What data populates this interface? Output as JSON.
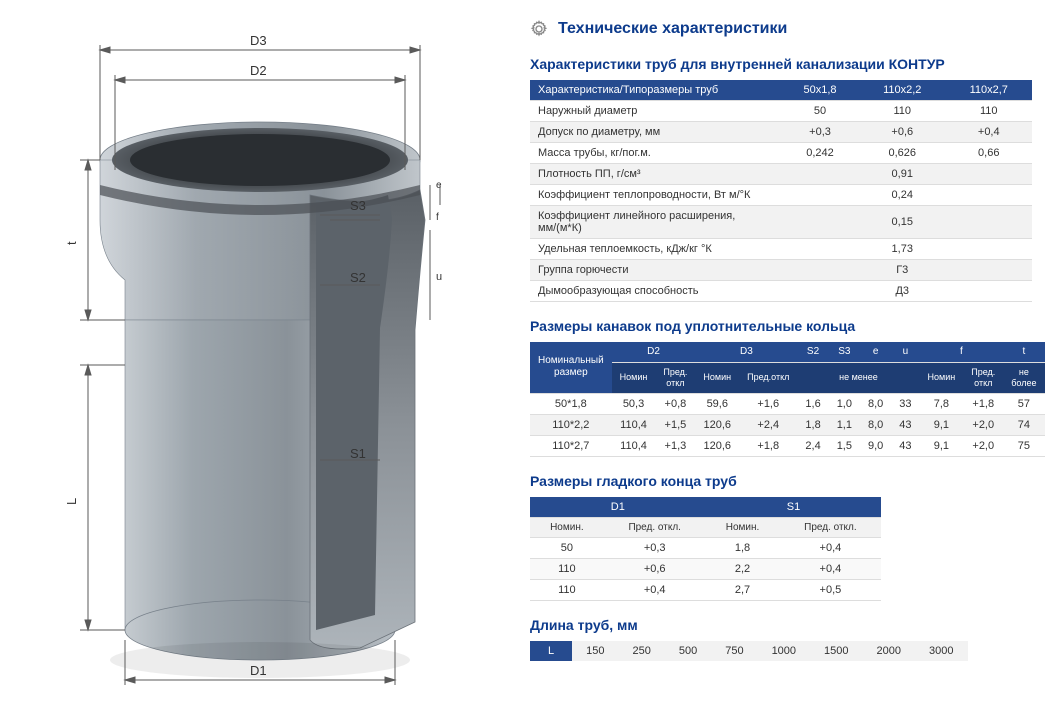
{
  "diagram": {
    "labels": {
      "D1": "D1",
      "D2": "D2",
      "D3": "D3",
      "S1": "S1",
      "S2": "S2",
      "S3": "S3",
      "e": "e",
      "f": "f",
      "u": "u",
      "L": "L",
      "t": "t"
    },
    "pipe_color": "#9da6ad",
    "pipe_dark": "#6b7279",
    "pipe_light": "#c5cbd0",
    "line_color": "#5a5a5a"
  },
  "mainHeading": "Технические характеристики",
  "table1": {
    "title": "Характеристики труб для внутренней канализации КОНТУР",
    "header": [
      "Характеристика/Типоразмеры труб",
      "50x1,8",
      "110x2,2",
      "110x2,7"
    ],
    "rows": [
      {
        "odd": false,
        "cells": [
          "Наружный диаметр",
          "50",
          "110",
          "110"
        ]
      },
      {
        "odd": true,
        "cells": [
          "Допуск по диаметру, мм",
          "+0,3",
          "+0,6",
          "+0,4"
        ]
      },
      {
        "odd": false,
        "cells": [
          "Масса трубы, кг/пог.м.",
          "0,242",
          "0,626",
          "0,66"
        ]
      },
      {
        "odd": true,
        "cells": [
          "Плотность ПП, г/см³",
          "",
          "0,91",
          ""
        ]
      },
      {
        "odd": false,
        "cells": [
          "Коэффициент теплопроводности, Вт м/°К",
          "",
          "0,24",
          ""
        ]
      },
      {
        "odd": true,
        "cells": [
          "Коэффициент линейного расширения, мм/(м*К)",
          "",
          "0,15",
          ""
        ]
      },
      {
        "odd": false,
        "cells": [
          "Удельная теплоемкость, кДж/кг °К",
          "",
          "1,73",
          ""
        ]
      },
      {
        "odd": true,
        "cells": [
          "Группа горючести",
          "",
          "Г3",
          ""
        ]
      },
      {
        "odd": false,
        "cells": [
          "Дымообразующая способность",
          "",
          "Д3",
          ""
        ]
      }
    ]
  },
  "table2": {
    "title": "Размеры канавок под уплотнительные кольца",
    "headerRow1": [
      "Номинальный размер",
      "D2",
      "D3",
      "S2",
      "S3",
      "e",
      "u",
      "f",
      "t"
    ],
    "subHeaders": {
      "D2": [
        "Номин",
        "Пред. откл"
      ],
      "D3": [
        "Номин",
        "Пред.откл"
      ],
      "mid": "не менее",
      "f": [
        "Номин",
        "Пред. откл"
      ],
      "t": "не более"
    },
    "rows": [
      {
        "odd": false,
        "cells": [
          "50*1,8",
          "50,3",
          "+0,8",
          "59,6",
          "+1,6",
          "1,6",
          "1,0",
          "8,0",
          "33",
          "7,8",
          "+1,8",
          "57"
        ]
      },
      {
        "odd": true,
        "cells": [
          "110*2,2",
          "110,4",
          "+1,5",
          "120,6",
          "+2,4",
          "1,8",
          "1,1",
          "8,0",
          "43",
          "9,1",
          "+2,0",
          "74"
        ]
      },
      {
        "odd": false,
        "cells": [
          "110*2,7",
          "110,4",
          "+1,3",
          "120,6",
          "+1,8",
          "2,4",
          "1,5",
          "9,0",
          "43",
          "9,1",
          "+2,0",
          "75"
        ]
      }
    ]
  },
  "table3": {
    "title": "Размеры гладкого конца труб",
    "header1": [
      "D1",
      "S1"
    ],
    "header2": [
      "Номин.",
      "Пред. откл.",
      "Номин.",
      "Пред. откл."
    ],
    "rows": [
      {
        "odd": false,
        "cells": [
          "50",
          "+0,3",
          "1,8",
          "+0,4"
        ]
      },
      {
        "odd": true,
        "cells": [
          "110",
          "+0,6",
          "2,2",
          "+0,4"
        ]
      },
      {
        "odd": false,
        "cells": [
          "110",
          "+0,4",
          "2,7",
          "+0,5"
        ]
      }
    ]
  },
  "lengths": {
    "title": "Длина труб, мм",
    "label": "L",
    "values": [
      "150",
      "250",
      "500",
      "750",
      "1000",
      "1500",
      "2000",
      "3000"
    ]
  },
  "colors": {
    "heading": "#0d3b8c",
    "tableHeader": "#264b8f",
    "rowAlt": "#f2f2f2"
  }
}
